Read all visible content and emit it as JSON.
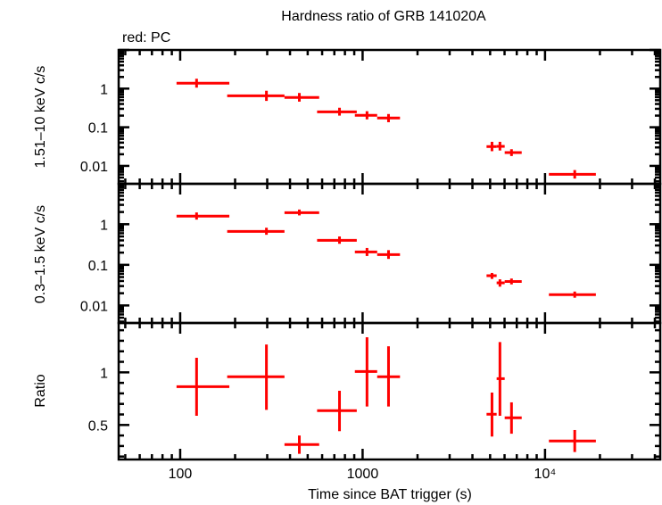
{
  "chart_data": {
    "type": "scatter",
    "title": "Hardness ratio of GRB 141020A",
    "legend_note": "red: PC",
    "xlabel": "Time since BAT trigger (s)",
    "x_scale": "log",
    "xlim": [
      46,
      42800
    ],
    "x_ticks": [
      100,
      1000,
      10000
    ],
    "x_tick_labels": [
      "100",
      "1000",
      "10⁴"
    ],
    "series_color": "#ff0000",
    "x": [
      123,
      297,
      450,
      747,
      1057,
      1387,
      5120,
      5660,
      6550,
      14550
    ],
    "x_lo": [
      95.5,
      181,
      373,
      563,
      907,
      1202,
      4780,
      5430,
      6010,
      10500
    ],
    "x_hi": [
      186,
      373,
      578,
      929,
      1202,
      1603,
      5430,
      6010,
      7450,
      19000
    ],
    "panels": [
      {
        "ylabel": "1.51–10 keV c/s",
        "y_scale": "log",
        "ylim": [
          0.00344,
          10
        ],
        "y_ticks": [
          1,
          0.1,
          0.01
        ],
        "y_tick_labels": [
          "1",
          "0.1",
          "0.01"
        ],
        "y": [
          1.38,
          0.65,
          0.59,
          0.25,
          0.203,
          0.173,
          0.0316,
          0.032,
          0.0221,
          0.00607
        ],
        "y_lo": [
          1.06,
          0.48,
          0.46,
          0.2,
          0.16,
          0.135,
          0.024,
          0.025,
          0.018,
          0.0047
        ],
        "y_hi": [
          1.8,
          0.88,
          0.77,
          0.32,
          0.26,
          0.22,
          0.042,
          0.042,
          0.027,
          0.0078
        ]
      },
      {
        "ylabel": "0.3–1.5 keV c/s",
        "y_scale": "log",
        "ylim": [
          0.0037,
          9.9
        ],
        "y_ticks": [
          1,
          0.1,
          0.01
        ],
        "y_tick_labels": [
          "1",
          "0.1",
          "0.01"
        ],
        "y": [
          1.58,
          0.667,
          1.93,
          0.4,
          0.208,
          0.179,
          0.054,
          0.036,
          0.039,
          0.0184
        ],
        "y_lo": [
          1.3,
          0.55,
          1.65,
          0.33,
          0.165,
          0.14,
          0.045,
          0.029,
          0.033,
          0.0155
        ],
        "y_hi": [
          1.95,
          0.82,
          2.3,
          0.5,
          0.26,
          0.23,
          0.063,
          0.044,
          0.046,
          0.022
        ]
      },
      {
        "ylabel": "Ratio",
        "y_scale": "linear",
        "ylim": [
          0.172,
          1.469
        ],
        "y_ticks": [
          1,
          0.5
        ],
        "y_tick_labels": [
          "1",
          "0.5"
        ],
        "y_minor_step": 0.1,
        "y": [
          0.864,
          0.958,
          0.314,
          0.636,
          1.008,
          0.958,
          0.602,
          0.94,
          0.568,
          0.348
        ],
        "y_lo": [
          0.587,
          0.644,
          0.226,
          0.441,
          0.675,
          0.675,
          0.39,
          0.587,
          0.417,
          0.243
        ],
        "y_hi": [
          1.138,
          1.265,
          0.4,
          0.825,
          1.333,
          1.248,
          0.808,
          1.288,
          0.715,
          0.452
        ]
      }
    ]
  }
}
